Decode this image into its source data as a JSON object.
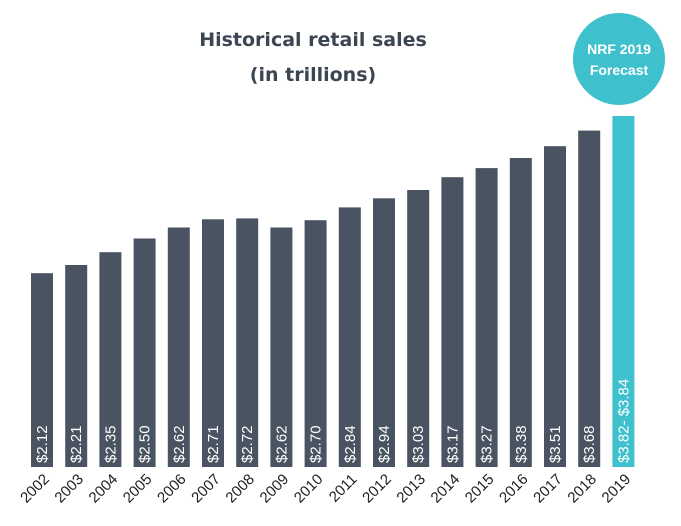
{
  "chart_data": {
    "type": "bar",
    "title": "Historical retail sales",
    "subtitle": "(in trillions)",
    "categories": [
      "2002",
      "2003",
      "2004",
      "2005",
      "2006",
      "2007",
      "2008",
      "2009",
      "2010",
      "2011",
      "2012",
      "2013",
      "2014",
      "2015",
      "2016",
      "2017",
      "2018",
      "2019"
    ],
    "values": [
      2.12,
      2.21,
      2.35,
      2.5,
      2.62,
      2.71,
      2.72,
      2.62,
      2.7,
      2.84,
      2.94,
      3.03,
      3.17,
      3.27,
      3.38,
      3.51,
      3.68,
      3.84
    ],
    "value_labels": [
      "$2.12",
      "$2.21",
      "$2.35",
      "$2.50",
      "$2.62",
      "$2.71",
      "$2.72",
      "$2.62",
      "$2.70",
      "$2.84",
      "$2.94",
      "$3.03",
      "$3.17",
      "$3.27",
      "$3.38",
      "$3.51",
      "$3.68",
      "$3.82- $3.84"
    ],
    "forecast_range": [
      3.82,
      3.84
    ],
    "xlabel": "",
    "ylabel": "",
    "ylim": [
      0,
      3.84
    ],
    "grid": false,
    "legend": "none",
    "colors": {
      "bar": "#4a5361",
      "forecast_bar": "#3ec0cd",
      "badge": "#3ec0cd",
      "title": "#3c4653"
    }
  },
  "badge": {
    "line1": "NRF 2019",
    "line2": "Forecast"
  }
}
